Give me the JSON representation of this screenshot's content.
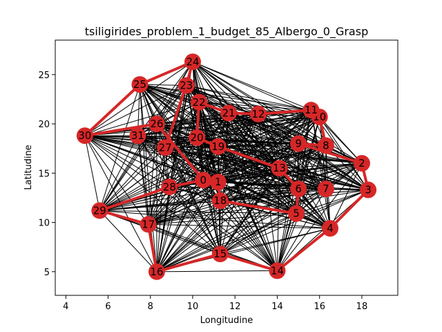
{
  "chart_data": {
    "type": "scatter",
    "title": "tsiligirides_problem_1_budget_85_Albergo_0_Grasp",
    "xlabel": "Longitudine",
    "ylabel": "Latitudine",
    "xlim": [
      3.5,
      19.7
    ],
    "ylim": [
      2.6,
      28.5
    ],
    "xticks": [
      4,
      6,
      8,
      10,
      12,
      14,
      16,
      18
    ],
    "yticks": [
      5,
      10,
      15,
      20,
      25
    ],
    "grid": false,
    "colors": {
      "node": "#d62728",
      "route": "#d62728",
      "edge": "#000000"
    },
    "nodes": [
      {
        "id": "0",
        "x": 10.5,
        "y": 14.3
      },
      {
        "id": "1",
        "x": 11.2,
        "y": 14.1
      },
      {
        "id": "2",
        "x": 18.0,
        "y": 16.0
      },
      {
        "id": "3",
        "x": 18.3,
        "y": 13.3
      },
      {
        "id": "4",
        "x": 16.5,
        "y": 9.4
      },
      {
        "id": "5",
        "x": 14.9,
        "y": 10.9
      },
      {
        "id": "6",
        "x": 15.0,
        "y": 13.4
      },
      {
        "id": "7",
        "x": 16.3,
        "y": 13.4
      },
      {
        "id": "8",
        "x": 16.3,
        "y": 17.8
      },
      {
        "id": "9",
        "x": 15.0,
        "y": 18.0
      },
      {
        "id": "10",
        "x": 16.0,
        "y": 20.7
      },
      {
        "id": "11",
        "x": 15.6,
        "y": 21.4
      },
      {
        "id": "12",
        "x": 13.1,
        "y": 21.0
      },
      {
        "id": "13",
        "x": 14.1,
        "y": 15.5
      },
      {
        "id": "14",
        "x": 14.0,
        "y": 5.1
      },
      {
        "id": "15",
        "x": 11.3,
        "y": 6.8
      },
      {
        "id": "16",
        "x": 8.3,
        "y": 5.0
      },
      {
        "id": "17",
        "x": 7.9,
        "y": 9.8
      },
      {
        "id": "18",
        "x": 11.3,
        "y": 12.2
      },
      {
        "id": "19",
        "x": 11.2,
        "y": 17.7
      },
      {
        "id": "20",
        "x": 10.2,
        "y": 18.6
      },
      {
        "id": "21",
        "x": 11.7,
        "y": 21.1
      },
      {
        "id": "22",
        "x": 10.3,
        "y": 22.2
      },
      {
        "id": "23",
        "x": 9.7,
        "y": 23.9
      },
      {
        "id": "24",
        "x": 10.0,
        "y": 26.3
      },
      {
        "id": "25",
        "x": 7.5,
        "y": 24.0
      },
      {
        "id": "26",
        "x": 8.3,
        "y": 20.0
      },
      {
        "id": "27",
        "x": 8.7,
        "y": 17.6
      },
      {
        "id": "28",
        "x": 8.9,
        "y": 13.6
      },
      {
        "id": "29",
        "x": 5.6,
        "y": 11.2
      },
      {
        "id": "30",
        "x": 4.9,
        "y": 18.8
      },
      {
        "id": "31",
        "x": 7.4,
        "y": 18.8
      }
    ],
    "route": [
      "0",
      "28",
      "29",
      "17",
      "16",
      "15",
      "14",
      "4",
      "3",
      "2",
      "9",
      "8",
      "10",
      "11",
      "12",
      "21",
      "22",
      "20",
      "19",
      "13",
      "6",
      "5",
      "18",
      "1",
      "0",
      "26",
      "30",
      "25",
      "24",
      "23",
      "27"
    ]
  }
}
